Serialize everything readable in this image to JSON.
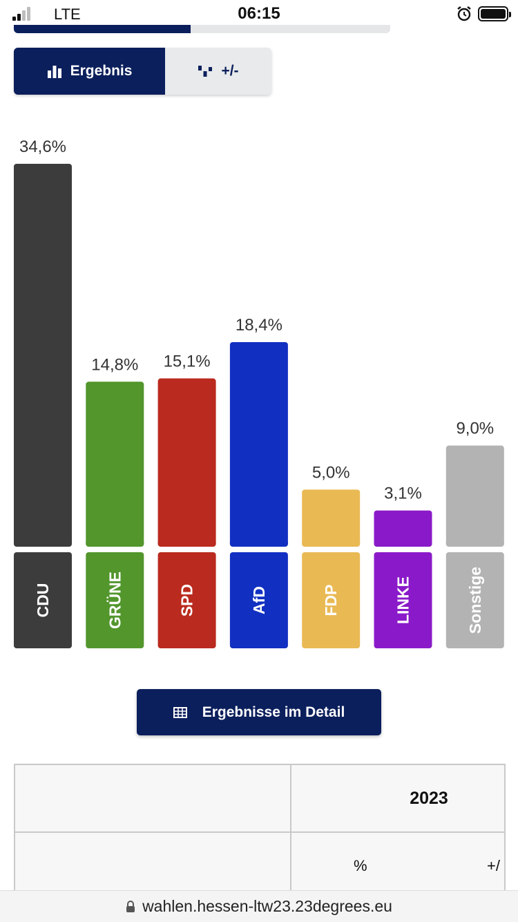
{
  "status_bar": {
    "carrier": "LTE",
    "time": "06:15"
  },
  "top_progress": {
    "fraction": 0.47
  },
  "view_toggle": {
    "result_label": "Ergebnis",
    "diff_label": "+/-",
    "active": "result"
  },
  "chart_data": {
    "type": "bar",
    "categories": [
      "CDU",
      "GRÜNE",
      "SPD",
      "AfD",
      "FDP",
      "LINKE",
      "Sonstige"
    ],
    "values": [
      34.6,
      14.8,
      15.1,
      18.4,
      5.0,
      3.1,
      9.0
    ],
    "value_labels": [
      "34,6%",
      "14,8%",
      "15,1%",
      "18,4%",
      "5,0%",
      "3,1%",
      "9,0%"
    ],
    "colors": [
      "#3c3c3c",
      "#52962c",
      "#ba2a1e",
      "#1130c2",
      "#e9b954",
      "#8a1ac9",
      "#b3b3b3"
    ],
    "label_text_color": "#ffffff",
    "value_label_color": "#333333",
    "unit": "%",
    "ylim": [
      0,
      34.6
    ],
    "grid": false,
    "title": "",
    "xlabel": "",
    "ylabel": ""
  },
  "detail_button": {
    "label": "Ergebnisse im Detail"
  },
  "results_table": {
    "year": "2023",
    "col_pct": "%",
    "col_diff": "+/"
  },
  "url_bar": {
    "url": "wahlen.hessen-ltw23.23degrees.eu"
  },
  "colors": {
    "navy": "#0b1f5c",
    "toggle_inactive": "#e8eaeb"
  }
}
